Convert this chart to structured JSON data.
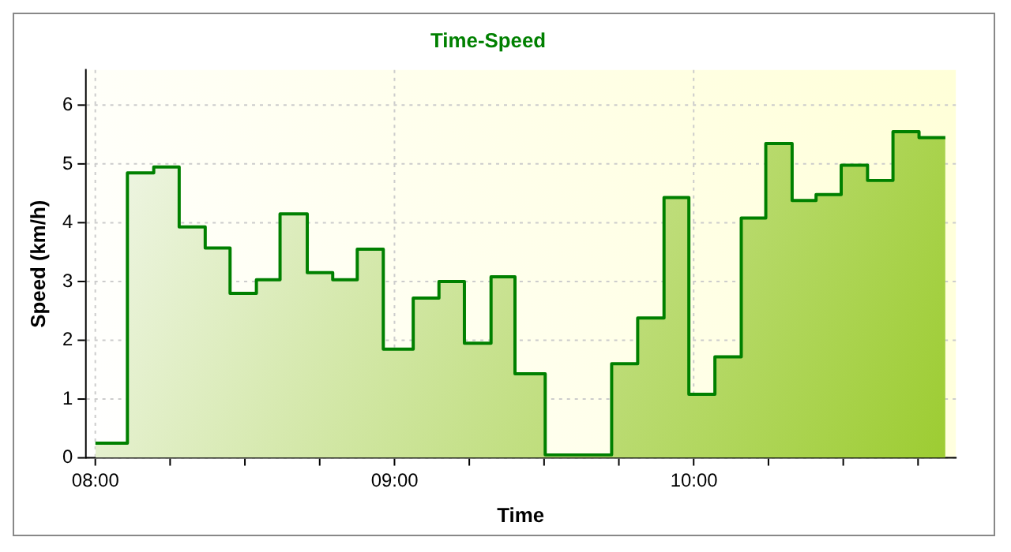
{
  "chart_data": {
    "type": "area",
    "title": "Time-Speed",
    "xlabel": "Time",
    "ylabel": "Speed (km/h)",
    "x": [
      8.0,
      8.107,
      8.107,
      8.195,
      8.195,
      8.28,
      8.28,
      8.367,
      8.367,
      8.45,
      8.45,
      8.538,
      8.538,
      8.617,
      8.617,
      8.708,
      8.708,
      8.793,
      8.793,
      8.875,
      8.875,
      8.962,
      8.962,
      9.062,
      9.062,
      9.148,
      9.148,
      9.233,
      9.233,
      9.322,
      9.322,
      9.402,
      9.402,
      9.503,
      9.503,
      9.725,
      9.725,
      9.812,
      9.812,
      9.9,
      9.9,
      9.983,
      9.983,
      10.07,
      10.07,
      10.158,
      10.158,
      10.24,
      10.24,
      10.328,
      10.328,
      10.408,
      10.408,
      10.492,
      10.492,
      10.58,
      10.58,
      10.665,
      10.665,
      10.752,
      10.752,
      10.84
    ],
    "series": [
      {
        "color": "#008000",
        "values": [
          0.25,
          0.25,
          4.85,
          4.85,
          4.95,
          4.95,
          3.93,
          3.93,
          3.57,
          3.57,
          2.8,
          2.8,
          3.03,
          3.03,
          4.15,
          4.15,
          3.15,
          3.15,
          3.03,
          3.03,
          3.55,
          3.55,
          1.85,
          1.85,
          2.72,
          2.72,
          3.0,
          3.0,
          1.95,
          1.95,
          3.08,
          3.08,
          1.43,
          1.43,
          0.05,
          0.05,
          1.6,
          1.6,
          2.38,
          2.38,
          4.43,
          4.43,
          1.08,
          1.08,
          1.72,
          1.72,
          4.08,
          4.08,
          5.35,
          5.35,
          4.38,
          4.38,
          4.48,
          4.48,
          4.98,
          4.98,
          4.72,
          4.72,
          5.55,
          5.55,
          5.45,
          5.45
        ]
      }
    ],
    "xlim": [
      7.967,
      10.875
    ],
    "xticks": [
      {
        "value": 8,
        "label": "08:00"
      },
      {
        "value": 8.25,
        "label": null
      },
      {
        "value": 8.5,
        "label": null
      },
      {
        "value": 8.75,
        "label": null
      },
      {
        "value": 9,
        "label": "09:00"
      },
      {
        "value": 9.25,
        "label": null
      },
      {
        "value": 9.5,
        "label": null
      },
      {
        "value": 9.75,
        "label": null
      },
      {
        "value": 10,
        "label": "10:00"
      },
      {
        "value": 10.25,
        "label": null
      },
      {
        "value": 10.5,
        "label": null
      },
      {
        "value": 10.75,
        "label": null
      }
    ],
    "ylim": [
      0,
      6.6
    ],
    "yticks": [
      0,
      1,
      2,
      3,
      4,
      5,
      6
    ],
    "grid": true,
    "legend": false
  }
}
